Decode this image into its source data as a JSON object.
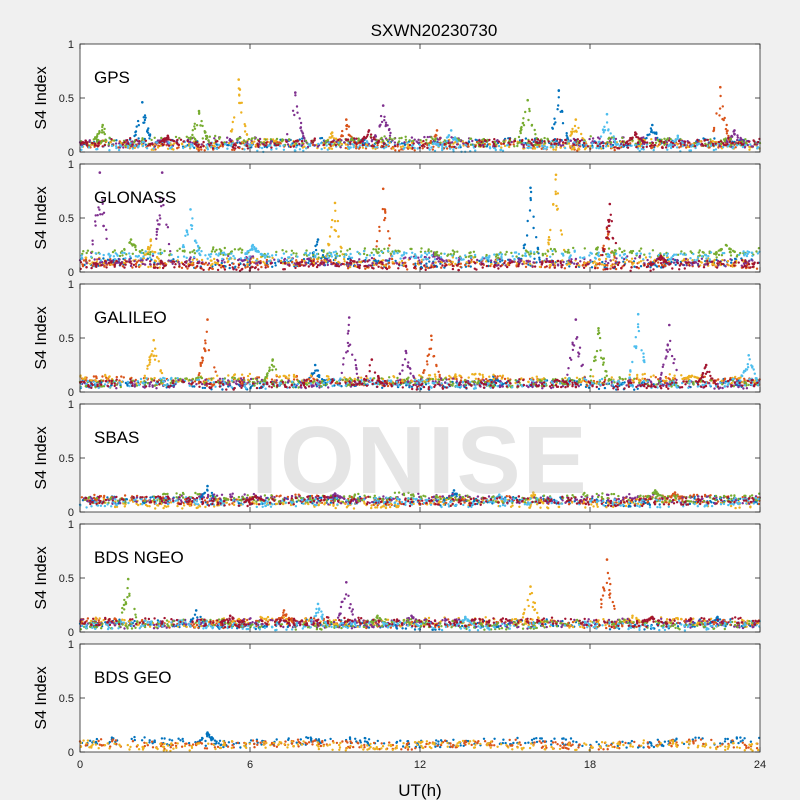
{
  "figure": {
    "title": "SXWN20230730",
    "watermark": "IONISE"
  },
  "chart_data": [
    {
      "type": "scatter",
      "name": "GPS",
      "panel_label": "GPS",
      "ylabel": "S4 Index",
      "xlabel": "",
      "xlim": [
        0,
        24
      ],
      "ylim": [
        0,
        1
      ],
      "xticks": [
        "0",
        "6",
        "12",
        "18",
        "24"
      ],
      "yticks": [
        "0",
        "0.5",
        "1"
      ],
      "series": [
        {
          "color": "#0072bd",
          "baseline": 0.08,
          "spikes": [
            [
              2.2,
              0.46
            ],
            [
              16.9,
              0.57
            ],
            [
              20.2,
              0.25
            ]
          ]
        },
        {
          "color": "#d95319",
          "baseline": 0.06,
          "spikes": [
            [
              9.4,
              0.3
            ],
            [
              22.6,
              0.6
            ],
            [
              12.6,
              0.2
            ]
          ]
        },
        {
          "color": "#edb120",
          "baseline": 0.07,
          "spikes": [
            [
              5.6,
              0.67
            ],
            [
              17.5,
              0.3
            ],
            [
              8.9,
              0.18
            ]
          ]
        },
        {
          "color": "#7e2f8e",
          "baseline": 0.09,
          "spikes": [
            [
              7.6,
              0.55
            ],
            [
              10.7,
              0.43
            ],
            [
              23.1,
              0.2
            ]
          ]
        },
        {
          "color": "#77ac30",
          "baseline": 0.1,
          "spikes": [
            [
              4.2,
              0.38
            ],
            [
              15.8,
              0.48
            ],
            [
              0.8,
              0.25
            ]
          ]
        },
        {
          "color": "#4dbeee",
          "baseline": 0.05,
          "spikes": [
            [
              18.6,
              0.35
            ],
            [
              13.1,
              0.2
            ],
            [
              21.1,
              0.15
            ]
          ]
        },
        {
          "color": "#a2142f",
          "baseline": 0.08,
          "spikes": [
            [
              10.2,
              0.2
            ],
            [
              19.6,
              0.18
            ],
            [
              3.1,
              0.15
            ]
          ]
        }
      ]
    },
    {
      "type": "scatter",
      "name": "GLONASS",
      "panel_label": "GLONASS",
      "ylabel": "S4 Index",
      "xlabel": "",
      "xlim": [
        0,
        24
      ],
      "ylim": [
        0,
        1
      ],
      "xticks": [
        "0",
        "6",
        "12",
        "18",
        "24"
      ],
      "yticks": [
        "0",
        "0.5",
        "1"
      ],
      "series": [
        {
          "color": "#0072bd",
          "baseline": 0.08,
          "spikes": [
            [
              15.9,
              0.78
            ],
            [
              8.4,
              0.3
            ]
          ]
        },
        {
          "color": "#d95319",
          "baseline": 0.07,
          "spikes": [
            [
              10.7,
              0.77
            ],
            [
              18.6,
              0.4
            ]
          ]
        },
        {
          "color": "#edb120",
          "baseline": 0.09,
          "spikes": [
            [
              16.8,
              0.9
            ],
            [
              9.0,
              0.64
            ],
            [
              2.5,
              0.3
            ]
          ]
        },
        {
          "color": "#7e2f8e",
          "baseline": 0.1,
          "spikes": [
            [
              0.7,
              0.92
            ],
            [
              2.9,
              0.92
            ],
            [
              12.5,
              0.18
            ]
          ]
        },
        {
          "color": "#77ac30",
          "baseline": 0.18,
          "spikes": [
            [
              1.8,
              0.3
            ],
            [
              22.8,
              0.25
            ]
          ]
        },
        {
          "color": "#4dbeee",
          "baseline": 0.15,
          "spikes": [
            [
              3.9,
              0.58
            ],
            [
              6.1,
              0.25
            ]
          ]
        },
        {
          "color": "#a2142f",
          "baseline": 0.06,
          "spikes": [
            [
              18.7,
              0.63
            ],
            [
              20.5,
              0.15
            ]
          ]
        }
      ]
    },
    {
      "type": "scatter",
      "name": "GALILEO",
      "panel_label": "GALILEO",
      "ylabel": "S4 Index",
      "xlabel": "",
      "xlim": [
        0,
        24
      ],
      "ylim": [
        0,
        1
      ],
      "xticks": [
        "0",
        "6",
        "12",
        "18",
        "24"
      ],
      "yticks": [
        "0",
        "0.5",
        "1"
      ],
      "series": [
        {
          "color": "#0072bd",
          "baseline": 0.07,
          "spikes": [
            [
              8.3,
              0.25
            ],
            [
              14.6,
              0.15
            ]
          ]
        },
        {
          "color": "#d95319",
          "baseline": 0.1,
          "spikes": [
            [
              4.5,
              0.67
            ],
            [
              12.4,
              0.52
            ]
          ]
        },
        {
          "color": "#edb120",
          "baseline": 0.12,
          "spikes": [
            [
              2.6,
              0.48
            ],
            [
              21.6,
              0.15
            ]
          ]
        },
        {
          "color": "#7e2f8e",
          "baseline": 0.08,
          "spikes": [
            [
              9.5,
              0.69
            ],
            [
              17.5,
              0.67
            ],
            [
              20.8,
              0.62
            ],
            [
              11.5,
              0.38
            ]
          ]
        },
        {
          "color": "#77ac30",
          "baseline": 0.09,
          "spikes": [
            [
              6.8,
              0.3
            ],
            [
              18.3,
              0.59
            ]
          ]
        },
        {
          "color": "#4dbeee",
          "baseline": 0.08,
          "spikes": [
            [
              19.7,
              0.72
            ],
            [
              23.6,
              0.34
            ]
          ]
        },
        {
          "color": "#a2142f",
          "baseline": 0.07,
          "spikes": [
            [
              10.3,
              0.3
            ],
            [
              22.1,
              0.25
            ]
          ]
        }
      ]
    },
    {
      "type": "scatter",
      "name": "SBAS",
      "panel_label": "SBAS",
      "ylabel": "S4 Index",
      "xlabel": "",
      "xlim": [
        0,
        24
      ],
      "ylim": [
        0,
        1
      ],
      "xticks": [
        "0",
        "6",
        "12",
        "18",
        "24"
      ],
      "yticks": [
        "0",
        "0.5",
        "1"
      ],
      "series": [
        {
          "color": "#0072bd",
          "baseline": 0.1,
          "spikes": [
            [
              4.5,
              0.24
            ],
            [
              13.2,
              0.2
            ]
          ]
        },
        {
          "color": "#d95319",
          "baseline": 0.11,
          "spikes": [
            [
              21.0,
              0.18
            ]
          ]
        },
        {
          "color": "#edb120",
          "baseline": 0.08,
          "spikes": [
            [
              16.0,
              0.18
            ]
          ]
        },
        {
          "color": "#7e2f8e",
          "baseline": 0.12,
          "spikes": [
            [
              9.0,
              0.17
            ]
          ]
        },
        {
          "color": "#77ac30",
          "baseline": 0.13,
          "spikes": [
            [
              20.3,
              0.2
            ]
          ]
        },
        {
          "color": "#4dbeee",
          "baseline": 0.09,
          "spikes": [
            [
              14.8,
              0.16
            ]
          ]
        },
        {
          "color": "#a2142f",
          "baseline": 0.1,
          "spikes": [
            [
              6.2,
              0.15
            ]
          ]
        }
      ]
    },
    {
      "type": "scatter",
      "name": "BDS NGEO",
      "panel_label": "BDS NGEO",
      "ylabel": "S4 Index",
      "xlabel": "",
      "xlim": [
        0,
        24
      ],
      "ylim": [
        0,
        1
      ],
      "xticks": [
        "0",
        "6",
        "12",
        "18",
        "24"
      ],
      "yticks": [
        "0",
        "0.5",
        "1"
      ],
      "series": [
        {
          "color": "#0072bd",
          "baseline": 0.07,
          "spikes": [
            [
              4.1,
              0.2
            ],
            [
              22.5,
              0.14
            ]
          ]
        },
        {
          "color": "#d95319",
          "baseline": 0.08,
          "spikes": [
            [
              18.6,
              0.67
            ],
            [
              7.2,
              0.2
            ]
          ]
        },
        {
          "color": "#edb120",
          "baseline": 0.09,
          "spikes": [
            [
              15.9,
              0.42
            ],
            [
              19.5,
              0.15
            ]
          ]
        },
        {
          "color": "#7e2f8e",
          "baseline": 0.08,
          "spikes": [
            [
              9.4,
              0.46
            ],
            [
              11.7,
              0.15
            ]
          ]
        },
        {
          "color": "#77ac30",
          "baseline": 0.07,
          "spikes": [
            [
              1.7,
              0.49
            ],
            [
              10.5,
              0.15
            ]
          ]
        },
        {
          "color": "#4dbeee",
          "baseline": 0.06,
          "spikes": [
            [
              8.4,
              0.26
            ],
            [
              13.6,
              0.14
            ]
          ]
        },
        {
          "color": "#a2142f",
          "baseline": 0.09,
          "spikes": [
            [
              5.3,
              0.15
            ],
            [
              20.2,
              0.14
            ]
          ]
        }
      ]
    },
    {
      "type": "scatter",
      "name": "BDS GEO",
      "panel_label": "BDS GEO",
      "ylabel": "S4 Index",
      "xlabel": "UT(h)",
      "xlim": [
        0,
        24
      ],
      "ylim": [
        0,
        1
      ],
      "xticks": [
        "0",
        "6",
        "12",
        "18",
        "24"
      ],
      "yticks": [
        "0",
        "0.5",
        "1"
      ],
      "series": [
        {
          "color": "#0072bd",
          "baseline": 0.09,
          "spikes": [
            [
              4.5,
              0.18
            ]
          ]
        },
        {
          "color": "#d95319",
          "baseline": 0.07,
          "spikes": []
        },
        {
          "color": "#edb120",
          "baseline": 0.06,
          "spikes": []
        }
      ]
    }
  ]
}
